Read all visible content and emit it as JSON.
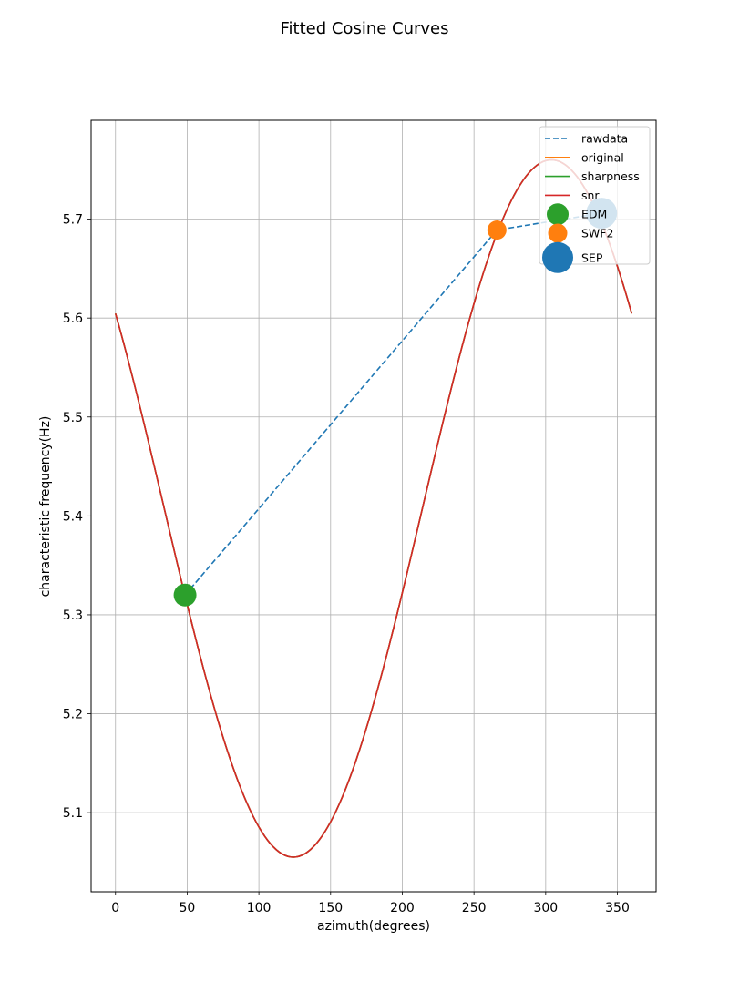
{
  "chart_data": {
    "type": "line",
    "title": "Fitted Cosine Curves",
    "xlabel": "azimuth(degrees)",
    "ylabel": "characteristic frequency(Hz)",
    "xlim": [
      -17,
      377
    ],
    "ylim": [
      5.02,
      5.8
    ],
    "xticks": [
      0,
      50,
      100,
      150,
      200,
      250,
      300,
      350
    ],
    "yticks": [
      5.1,
      5.2,
      5.3,
      5.4,
      5.5,
      5.6,
      5.7
    ],
    "grid": true,
    "legend_position": "top-right",
    "curve_model": {
      "mean": 5.4075,
      "amplitude": 0.3525,
      "phase_deg": 304
    },
    "series": [
      {
        "name": "rawdata",
        "kind": "line",
        "style": "dashed",
        "color": "#1f77b4",
        "x": [
          48.5,
          266,
          339
        ],
        "y": [
          5.32,
          5.689,
          5.706
        ]
      },
      {
        "name": "original",
        "kind": "line",
        "style": "solid",
        "color": "#ff7f0e",
        "x_range": [
          0,
          360
        ],
        "model": "curve_model"
      },
      {
        "name": "sharpness",
        "kind": "line",
        "style": "solid",
        "color": "#2ca02c",
        "x_range": [
          0,
          360
        ],
        "model": "curve_model"
      },
      {
        "name": "snr",
        "kind": "line",
        "style": "solid",
        "color": "#d62728",
        "x_range": [
          0,
          360
        ],
        "model": "curve_model"
      },
      {
        "name": "EDM",
        "kind": "marker",
        "color": "#2ca02c",
        "size": "medium",
        "x": 48.5,
        "y": 5.32
      },
      {
        "name": "SWF2",
        "kind": "marker",
        "color": "#ff7f0e",
        "size": "small",
        "x": 266,
        "y": 5.689
      },
      {
        "name": "SEP",
        "kind": "marker",
        "color": "#1f77b4",
        "size": "large",
        "x": 339,
        "y": 5.706
      }
    ]
  }
}
